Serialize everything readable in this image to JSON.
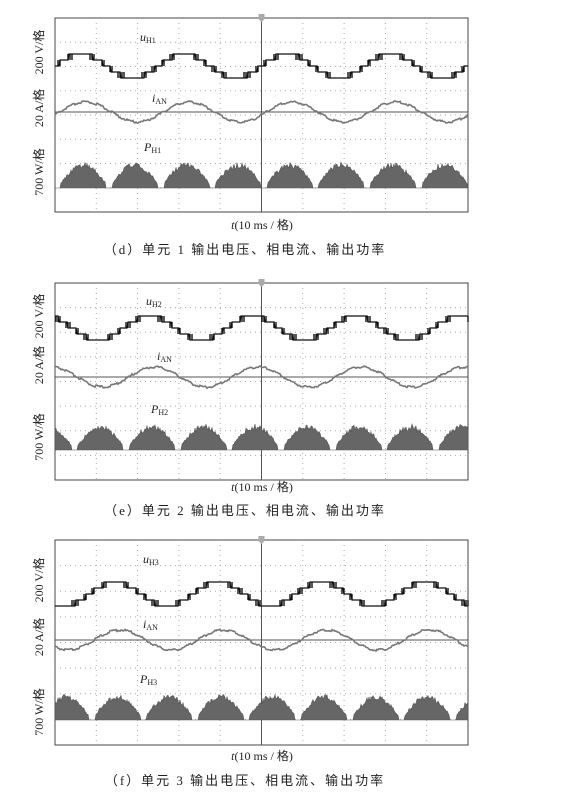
{
  "panels": [
    {
      "y_labels": [
        "200 V/格",
        "20 A/格",
        "700 W/格"
      ],
      "traces": [
        {
          "symbol": "u",
          "subscript": "H1"
        },
        {
          "symbol": "i",
          "subscript": "AN"
        },
        {
          "symbol": "P",
          "subscript": "H1"
        }
      ],
      "x_label": {
        "symbol": "t",
        "text": "(10 ms / 格)"
      },
      "caption": "（d）单元 1 输出电压、相电流、输出功率"
    },
    {
      "y_labels": [
        "200 V/格",
        "20 A/格",
        "700 W/格"
      ],
      "traces": [
        {
          "symbol": "u",
          "subscript": "H2"
        },
        {
          "symbol": "i",
          "subscript": "AN"
        },
        {
          "symbol": "P",
          "subscript": "H2"
        }
      ],
      "x_label": {
        "symbol": "t",
        "text": "(10 ms / 格)"
      },
      "caption": "（e）单元 2 输出电压、相电流、输出功率"
    },
    {
      "y_labels": [
        "200 V/格",
        "20 A/格",
        "700 W/格"
      ],
      "traces": [
        {
          "symbol": "u",
          "subscript": "H3"
        },
        {
          "symbol": "i",
          "subscript": "AN"
        },
        {
          "symbol": "P",
          "subscript": "H3"
        }
      ],
      "x_label": {
        "symbol": "t",
        "text": "(10 ms / 格)"
      },
      "caption": "（f）单元 3 输出电压、相电流、输出功率"
    }
  ]
}
